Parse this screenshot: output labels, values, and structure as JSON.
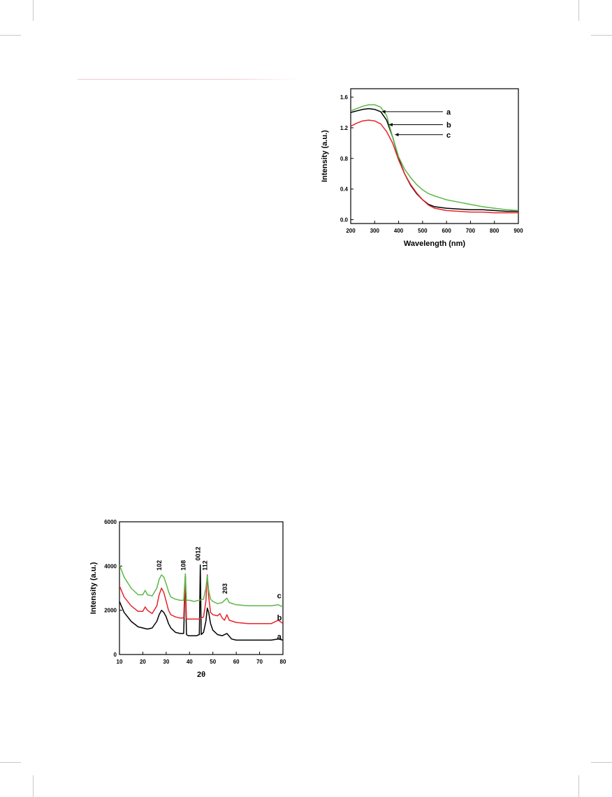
{
  "chart_data": [
    {
      "id": "uv",
      "type": "line",
      "xlabel": "Wavelength (nm)",
      "ylabel": "Intensity (a.u.)",
      "xlim": [
        200,
        900
      ],
      "ylim": [
        -0.05,
        1.71
      ],
      "x_ticks": [
        200,
        300,
        400,
        500,
        600,
        700,
        800,
        900
      ],
      "y_ticks": [
        0.0,
        0.4,
        0.8,
        1.2,
        1.6
      ],
      "y_tick_labels": [
        "0.0",
        "0.4",
        "0.8",
        "1.2",
        "1.6"
      ],
      "grid": false,
      "series": [
        {
          "name": "a",
          "color": "#000000",
          "x": [
            200,
            225,
            250,
            275,
            300,
            325,
            350,
            375,
            400,
            425,
            450,
            475,
            500,
            525,
            550,
            600,
            650,
            700,
            750,
            800,
            850,
            900
          ],
          "values": [
            1.4,
            1.42,
            1.44,
            1.45,
            1.44,
            1.41,
            1.3,
            1.08,
            0.8,
            0.6,
            0.45,
            0.34,
            0.26,
            0.2,
            0.17,
            0.15,
            0.14,
            0.13,
            0.13,
            0.12,
            0.11,
            0.11
          ]
        },
        {
          "name": "b",
          "color": "#e8242a",
          "x": [
            200,
            225,
            250,
            275,
            300,
            325,
            350,
            375,
            400,
            425,
            450,
            475,
            500,
            525,
            550,
            600,
            650,
            700,
            750,
            800,
            850,
            900
          ],
          "values": [
            1.22,
            1.26,
            1.29,
            1.3,
            1.29,
            1.25,
            1.15,
            1.0,
            0.78,
            0.6,
            0.46,
            0.35,
            0.26,
            0.19,
            0.15,
            0.12,
            0.11,
            0.1,
            0.1,
            0.09,
            0.09,
            0.09
          ]
        },
        {
          "name": "c",
          "color": "#5cb848",
          "x": [
            200,
            225,
            250,
            275,
            300,
            325,
            350,
            375,
            400,
            425,
            450,
            475,
            500,
            525,
            550,
            600,
            650,
            700,
            750,
            800,
            850,
            900
          ],
          "values": [
            1.42,
            1.45,
            1.48,
            1.5,
            1.5,
            1.47,
            1.36,
            1.08,
            0.82,
            0.66,
            0.55,
            0.46,
            0.39,
            0.34,
            0.31,
            0.26,
            0.23,
            0.2,
            0.17,
            0.15,
            0.13,
            0.12
          ]
        }
      ],
      "annotations": [
        {
          "label": "a",
          "x_from": 330,
          "y": 1.41
        },
        {
          "label": "b",
          "x_from": 360,
          "y": 1.24
        },
        {
          "label": "c",
          "x_from": 385,
          "y": 1.11
        }
      ]
    },
    {
      "id": "xrd",
      "type": "line",
      "xlabel": "2θ",
      "ylabel": "Intensity (a.u.)",
      "xlim": [
        10,
        80
      ],
      "ylim": [
        0,
        6000
      ],
      "x_ticks": [
        10,
        20,
        30,
        40,
        50,
        60,
        70,
        80
      ],
      "y_ticks": [
        0,
        2000,
        4000,
        6000
      ],
      "y_tick_labels": [
        "0",
        "2000",
        "4000",
        "6000"
      ],
      "grid": false,
      "series": [
        {
          "name": "a",
          "color": "#000000",
          "x": [
            10,
            12,
            15,
            18,
            20,
            22,
            24,
            26,
            27,
            28,
            29,
            30,
            31,
            32,
            34,
            36,
            37.5,
            38.2,
            38.7,
            39.5,
            41,
            43,
            44.2,
            44.6,
            45,
            46,
            47,
            47.6,
            48.2,
            49,
            50,
            52,
            54,
            56,
            58,
            60,
            65,
            70,
            75,
            78,
            80
          ],
          "values": [
            2400,
            1900,
            1500,
            1250,
            1200,
            1150,
            1200,
            1500,
            1800,
            2000,
            1900,
            1700,
            1400,
            1200,
            1000,
            950,
            950,
            3600,
            900,
            850,
            850,
            850,
            900,
            4050,
            900,
            1000,
            1500,
            2100,
            1900,
            1400,
            1100,
            900,
            850,
            950,
            700,
            650,
            650,
            650,
            650,
            700,
            650
          ]
        },
        {
          "name": "b",
          "color": "#e8242a",
          "x": [
            10,
            12,
            15,
            18,
            20,
            21,
            22,
            24,
            26,
            27,
            28,
            29,
            30,
            31,
            32,
            34,
            36,
            37.5,
            38.2,
            38.7,
            40,
            42,
            44,
            46,
            47,
            47.6,
            48.2,
            49,
            50,
            52,
            53,
            54,
            55,
            56,
            57,
            60,
            65,
            70,
            75,
            78,
            80
          ],
          "values": [
            3100,
            2600,
            2200,
            1950,
            1950,
            2150,
            2000,
            1850,
            2200,
            2700,
            3000,
            2800,
            2400,
            2000,
            1800,
            1700,
            1650,
            1650,
            3600,
            1600,
            1600,
            1600,
            1600,
            1700,
            2400,
            3600,
            2600,
            1900,
            1800,
            1750,
            1850,
            1650,
            1550,
            1800,
            1550,
            1450,
            1400,
            1400,
            1400,
            1550,
            1400
          ]
        },
        {
          "name": "c",
          "color": "#5cb848",
          "x": [
            10,
            12,
            15,
            18,
            20,
            21,
            22,
            24,
            26,
            27,
            28,
            29,
            30,
            31,
            32,
            34,
            36,
            37.5,
            38.2,
            38.7,
            40,
            42,
            44,
            46,
            47,
            47.6,
            48.2,
            49,
            50,
            52,
            54,
            55,
            56,
            57,
            60,
            65,
            70,
            75,
            78,
            80
          ],
          "values": [
            4050,
            3500,
            3000,
            2700,
            2700,
            2900,
            2700,
            2650,
            3000,
            3400,
            3600,
            3500,
            3200,
            2850,
            2600,
            2500,
            2450,
            2450,
            3650,
            2450,
            2450,
            2400,
            2450,
            2500,
            3000,
            3550,
            2900,
            2500,
            2400,
            2300,
            2350,
            2450,
            2550,
            2350,
            2250,
            2200,
            2200,
            2200,
            2250,
            2150
          ]
        }
      ],
      "peak_labels": [
        {
          "label": "102",
          "x": 28,
          "y": 3700
        },
        {
          "label": "108",
          "x": 38.2,
          "y": 3700
        },
        {
          "label": "0012",
          "x": 44.6,
          "y": 4150
        },
        {
          "label": "112",
          "x": 47.6,
          "y": 3700
        },
        {
          "label": "203",
          "x": 56,
          "y": 2650
        }
      ],
      "end_labels": [
        {
          "label": "c",
          "y": 2550
        },
        {
          "label": "b",
          "y": 1550
        },
        {
          "label": "a",
          "y": 700
        }
      ]
    }
  ]
}
